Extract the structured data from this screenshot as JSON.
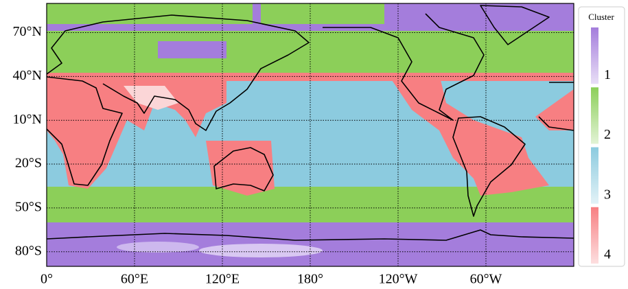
{
  "map": {
    "xlim": [
      0,
      360
    ],
    "ylim": [
      -90,
      90
    ],
    "grid": true,
    "xticks": [
      {
        "value": 0,
        "label": "0°"
      },
      {
        "value": 60,
        "label": "60°E"
      },
      {
        "value": 120,
        "label": "120°E"
      },
      {
        "value": 180,
        "label": "180°"
      },
      {
        "value": -120,
        "label": "120°W"
      },
      {
        "value": -60,
        "label": "60°W"
      }
    ],
    "yticks": [
      {
        "value": 70,
        "label": "70°N"
      },
      {
        "value": 40,
        "label": "40°N"
      },
      {
        "value": 10,
        "label": "10°N"
      },
      {
        "value": -20,
        "label": "20°S"
      },
      {
        "value": -50,
        "label": "50°S"
      },
      {
        "value": -80,
        "label": "80°S"
      }
    ]
  },
  "legend": {
    "title": "Cluster",
    "items": [
      {
        "label": "1",
        "color": "#a47ddc"
      },
      {
        "label": "2",
        "color": "#8ccf59"
      },
      {
        "label": "3",
        "color": "#8ccbdf"
      },
      {
        "label": "4",
        "color": "#f77f82"
      }
    ]
  }
}
